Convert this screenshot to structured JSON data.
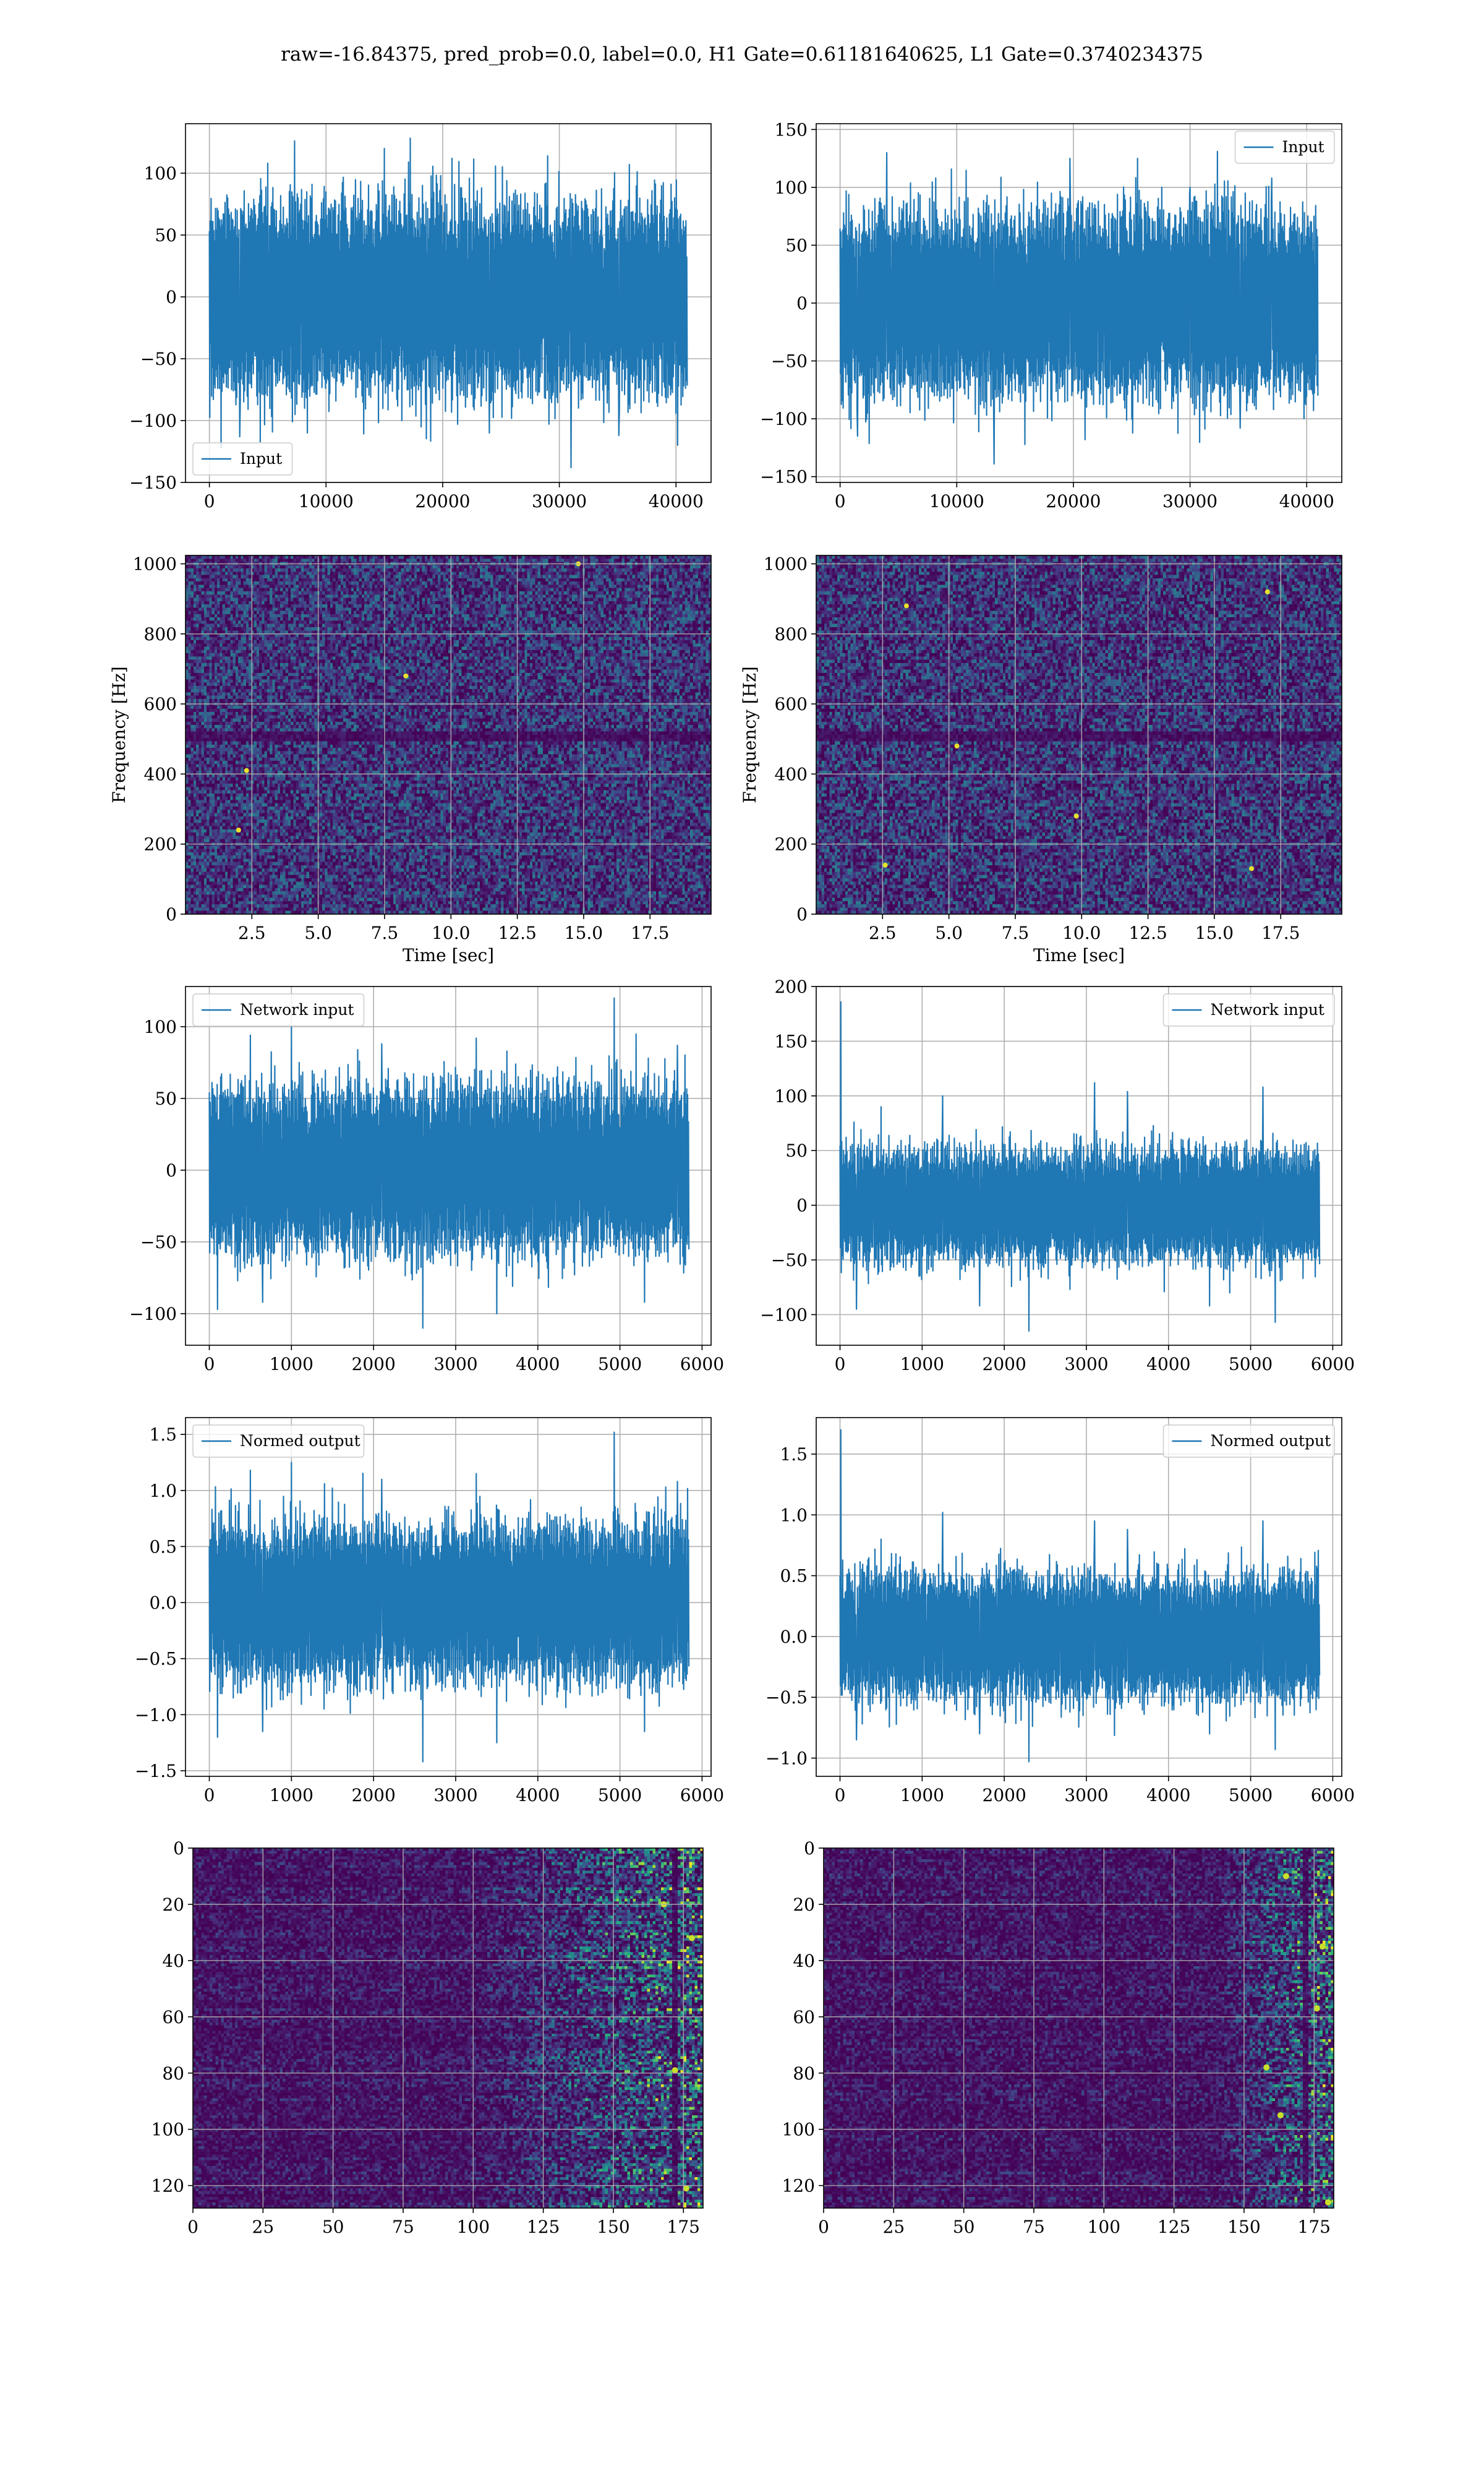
{
  "figure": {
    "suptitle": "raw=-16.84375, pred_prob=0.0, label=0.0, H1 Gate=0.61181640625, L1 Gate=0.3740234375",
    "colors": {
      "line": "#1f77b4",
      "grid": "#b0b0b0",
      "frame": "#000000"
    }
  },
  "chart_data": [
    {
      "type": "line",
      "title": "",
      "xlabel": "",
      "ylabel": "",
      "xlim": [
        -2048,
        43008
      ],
      "ylim": [
        -150,
        140
      ],
      "grid": true,
      "xticks": [
        0,
        10000,
        20000,
        30000,
        40000
      ],
      "xtick_labels": [
        "0",
        "10000",
        "20000",
        "30000",
        "40000"
      ],
      "yticks": [
        -150,
        -100,
        -50,
        0,
        50,
        100
      ],
      "ytick_labels": [
        "−150",
        "−100",
        "−50",
        "0",
        "50",
        "100"
      ],
      "legend": "lower left",
      "series": [
        {
          "name": "Input",
          "x_range": [
            0,
            40960
          ],
          "band_typical": [
            -60,
            60
          ],
          "peaks": [
            [
              2600,
              110
            ],
            [
              5000,
              108
            ],
            [
              7300,
              126
            ],
            [
              15000,
              120
            ],
            [
              20800,
              112
            ],
            [
              29000,
              114
            ],
            [
              36000,
              107
            ],
            [
              1000,
              -122
            ],
            [
              2600,
              -113
            ],
            [
              8400,
              -110
            ],
            [
              16500,
              -100
            ],
            [
              24000,
              -110
            ],
            [
              31000,
              -138
            ],
            [
              35100,
              -112
            ]
          ]
        }
      ]
    },
    {
      "type": "line",
      "title": "",
      "xlabel": "",
      "ylabel": "",
      "xlim": [
        -2048,
        43008
      ],
      "ylim": [
        -155,
        155
      ],
      "grid": true,
      "xticks": [
        0,
        10000,
        20000,
        30000,
        40000
      ],
      "xtick_labels": [
        "0",
        "10000",
        "20000",
        "30000",
        "40000"
      ],
      "yticks": [
        -150,
        -100,
        -50,
        0,
        50,
        100,
        150
      ],
      "ytick_labels": [
        "−150",
        "−100",
        "−50",
        "0",
        "50",
        "100",
        "150"
      ],
      "legend": "upper right",
      "series": [
        {
          "name": "Input",
          "x_range": [
            0,
            40960
          ],
          "band_typical": [
            -62,
            62
          ],
          "peaks": [
            [
              4000,
              130
            ],
            [
              8200,
              108
            ],
            [
              19700,
              125
            ],
            [
              25500,
              125
            ],
            [
              30000,
              100
            ],
            [
              37000,
              108
            ],
            [
              1500,
              -115
            ],
            [
              13200,
              -139
            ],
            [
              21000,
              -118
            ],
            [
              34300,
              -108
            ]
          ]
        }
      ]
    },
    {
      "type": "heatmap",
      "title": "",
      "xlabel": "Time [sec]",
      "ylabel": "Frequency [Hz]",
      "xlim": [
        0,
        19.8
      ],
      "ylim": [
        0,
        1024
      ],
      "grid": true,
      "colormap": "viridis",
      "xticks": [
        2.5,
        5,
        7.5,
        10,
        12.5,
        15,
        17.5
      ],
      "xtick_labels": [
        "2.5",
        "5.0",
        "7.5",
        "10.0",
        "12.5",
        "15.0",
        "17.5"
      ],
      "yticks": [
        0,
        200,
        400,
        600,
        800,
        1000
      ],
      "ytick_labels": [
        "0",
        "200",
        "400",
        "600",
        "800",
        "1000"
      ],
      "dark_band_hz": [
        490,
        520
      ],
      "hot_spots": [
        [
          2.0,
          240
        ],
        [
          2.3,
          410
        ],
        [
          8.3,
          680
        ],
        [
          14.8,
          1000
        ]
      ]
    },
    {
      "type": "heatmap",
      "title": "",
      "xlabel": "Time [sec]",
      "ylabel": "Frequency [Hz]",
      "xlim": [
        0,
        19.8
      ],
      "ylim": [
        0,
        1024
      ],
      "grid": true,
      "colormap": "viridis",
      "xticks": [
        2.5,
        5,
        7.5,
        10,
        12.5,
        15,
        17.5
      ],
      "xtick_labels": [
        "2.5",
        "5.0",
        "7.5",
        "10.0",
        "12.5",
        "15.0",
        "17.5"
      ],
      "yticks": [
        0,
        200,
        400,
        600,
        800,
        1000
      ],
      "ytick_labels": [
        "0",
        "200",
        "400",
        "600",
        "800",
        "1000"
      ],
      "dark_band_hz": [
        490,
        520
      ],
      "hot_spots": [
        [
          3.4,
          880
        ],
        [
          5.3,
          480
        ],
        [
          9.8,
          280
        ],
        [
          2.6,
          140
        ],
        [
          16.4,
          130
        ],
        [
          17.0,
          920
        ]
      ]
    },
    {
      "type": "line",
      "title": "",
      "xlabel": "",
      "ylabel": "",
      "xlim": [
        -290,
        6110
      ],
      "ylim": [
        -122,
        128
      ],
      "grid": true,
      "xticks": [
        0,
        1000,
        2000,
        3000,
        4000,
        5000,
        6000
      ],
      "xtick_labels": [
        "0",
        "1000",
        "2000",
        "3000",
        "4000",
        "5000",
        "6000"
      ],
      "yticks": [
        -100,
        -50,
        0,
        50,
        100
      ],
      "ytick_labels": [
        "−100",
        "−50",
        "0",
        "50",
        "100"
      ],
      "legend": "upper left",
      "series": [
        {
          "name": "Network input",
          "x_range": [
            0,
            5840
          ],
          "band_typical": [
            -45,
            45
          ],
          "peaks": [
            [
              500,
              94
            ],
            [
              1000,
              100
            ],
            [
              2100,
              88
            ],
            [
              3250,
              92
            ],
            [
              4930,
              120
            ],
            [
              5700,
              87
            ],
            [
              100,
              -97
            ],
            [
              650,
              -92
            ],
            [
              2600,
              -110
            ],
            [
              3500,
              -100
            ],
            [
              5300,
              -92
            ]
          ]
        }
      ]
    },
    {
      "type": "line",
      "title": "",
      "xlabel": "",
      "ylabel": "",
      "xlim": [
        -290,
        6110
      ],
      "ylim": [
        -128,
        200
      ],
      "grid": true,
      "xticks": [
        0,
        1000,
        2000,
        3000,
        4000,
        5000,
        6000
      ],
      "xtick_labels": [
        "0",
        "1000",
        "2000",
        "3000",
        "4000",
        "5000",
        "6000"
      ],
      "yticks": [
        -100,
        -50,
        0,
        50,
        100,
        150,
        200
      ],
      "ytick_labels": [
        "−100",
        "−50",
        "0",
        "50",
        "100",
        "150",
        "200"
      ],
      "legend": "upper right",
      "series": [
        {
          "name": "Network input",
          "x_range": [
            0,
            5840
          ],
          "band_typical": [
            -40,
            40
          ],
          "peaks": [
            [
              10,
              186
            ],
            [
              500,
              90
            ],
            [
              1250,
              100
            ],
            [
              3100,
              112
            ],
            [
              3500,
              104
            ],
            [
              5150,
              108
            ],
            [
              200,
              -95
            ],
            [
              1700,
              -92
            ],
            [
              2300,
              -115
            ],
            [
              4500,
              -92
            ],
            [
              5300,
              -107
            ]
          ]
        }
      ]
    },
    {
      "type": "line",
      "title": "",
      "xlabel": "",
      "ylabel": "",
      "xlim": [
        -290,
        6110
      ],
      "ylim": [
        -1.55,
        1.65
      ],
      "grid": true,
      "xticks": [
        0,
        1000,
        2000,
        3000,
        4000,
        5000,
        6000
      ],
      "xtick_labels": [
        "0",
        "1000",
        "2000",
        "3000",
        "4000",
        "5000",
        "6000"
      ],
      "yticks": [
        -1.5,
        -1,
        -0.5,
        0,
        0.5,
        1,
        1.5
      ],
      "ytick_labels": [
        "−1.5",
        "−1.0",
        "−0.5",
        "0.0",
        "0.5",
        "1.0",
        "1.5"
      ],
      "legend": "upper left",
      "series": [
        {
          "name": "Normed output",
          "x_range": [
            0,
            5840
          ],
          "band_typical": [
            -0.55,
            0.55
          ],
          "peaks": [
            [
              500,
              1.18
            ],
            [
              1000,
              1.25
            ],
            [
              2100,
              1.1
            ],
            [
              3250,
              1.15
            ],
            [
              4930,
              1.52
            ],
            [
              5700,
              1.08
            ],
            [
              100,
              -1.2
            ],
            [
              650,
              -1.15
            ],
            [
              2600,
              -1.42
            ],
            [
              3500,
              -1.25
            ],
            [
              5300,
              -1.15
            ]
          ]
        }
      ]
    },
    {
      "type": "line",
      "title": "",
      "xlabel": "",
      "ylabel": "",
      "xlim": [
        -290,
        6110
      ],
      "ylim": [
        -1.15,
        1.8
      ],
      "grid": true,
      "xticks": [
        0,
        1000,
        2000,
        3000,
        4000,
        5000,
        6000
      ],
      "xtick_labels": [
        "0",
        "1000",
        "2000",
        "3000",
        "4000",
        "5000",
        "6000"
      ],
      "yticks": [
        -1,
        -0.5,
        0,
        0.5,
        1,
        1.5
      ],
      "ytick_labels": [
        "−1.0",
        "−0.5",
        "0.0",
        "0.5",
        "1.0",
        "1.5"
      ],
      "legend": "upper right",
      "series": [
        {
          "name": "Normed output",
          "x_range": [
            0,
            5840
          ],
          "band_typical": [
            -0.4,
            0.4
          ],
          "peaks": [
            [
              10,
              1.7
            ],
            [
              500,
              0.8
            ],
            [
              1250,
              1.02
            ],
            [
              3100,
              0.95
            ],
            [
              3500,
              0.88
            ],
            [
              5150,
              0.95
            ],
            [
              200,
              -0.85
            ],
            [
              1700,
              -0.8
            ],
            [
              2300,
              -1.03
            ],
            [
              4500,
              -0.8
            ],
            [
              5300,
              -0.93
            ]
          ]
        }
      ]
    },
    {
      "type": "heatmap",
      "title": "",
      "xlabel": "",
      "ylabel": "",
      "xlim": [
        0,
        182
      ],
      "ylim": [
        128,
        0
      ],
      "grid": true,
      "colormap": "viridis",
      "xticks": [
        0,
        25,
        50,
        75,
        100,
        125,
        150,
        175
      ],
      "xtick_labels": [
        "0",
        "25",
        "50",
        "75",
        "100",
        "125",
        "150",
        "175"
      ],
      "yticks": [
        0,
        20,
        40,
        60,
        80,
        100,
        120
      ],
      "ytick_labels": [
        "0",
        "20",
        "40",
        "60",
        "80",
        "100",
        "120"
      ],
      "activity_ramp_col": [
        100,
        182
      ],
      "hot_spots": [
        [
          178,
          32
        ],
        [
          172,
          79
        ],
        [
          176,
          121
        ],
        [
          168,
          20
        ]
      ]
    },
    {
      "type": "heatmap",
      "title": "",
      "xlabel": "",
      "ylabel": "",
      "xlim": [
        0,
        182
      ],
      "ylim": [
        128,
        0
      ],
      "grid": true,
      "colormap": "viridis",
      "xticks": [
        0,
        25,
        50,
        75,
        100,
        125,
        150,
        175
      ],
      "xtick_labels": [
        "0",
        "25",
        "50",
        "75",
        "100",
        "125",
        "150",
        "175"
      ],
      "yticks": [
        0,
        20,
        40,
        60,
        80,
        100,
        120
      ],
      "ytick_labels": [
        "0",
        "20",
        "40",
        "60",
        "80",
        "100",
        "120"
      ],
      "activity_ramp_col": [
        140,
        182
      ],
      "hot_spots": [
        [
          178,
          35
        ],
        [
          176,
          57
        ],
        [
          180,
          126
        ],
        [
          163,
          95
        ],
        [
          158,
          78
        ],
        [
          165,
          10
        ]
      ]
    }
  ]
}
